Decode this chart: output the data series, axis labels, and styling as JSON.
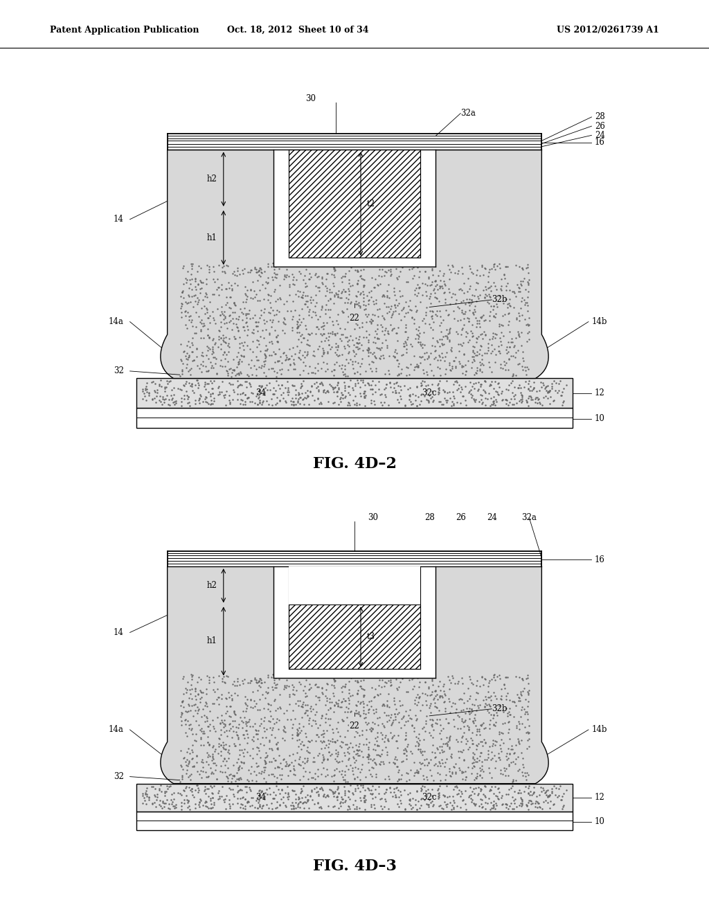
{
  "header_left": "Patent Application Publication",
  "header_center": "Oct. 18, 2012  Sheet 10 of 34",
  "header_right": "US 2012/0261739 A1",
  "fig1_caption": "FIG. 4D–2",
  "fig2_caption": "FIG. 4D–3",
  "bg_color": "#ffffff"
}
